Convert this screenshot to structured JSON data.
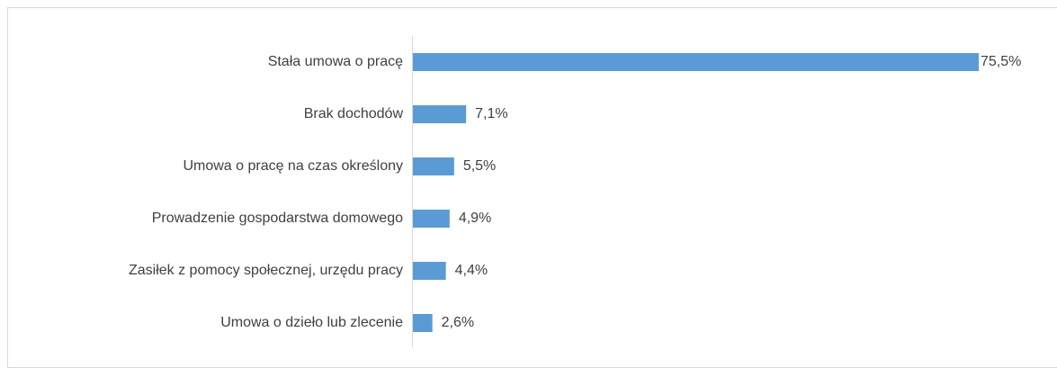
{
  "chart_data": {
    "type": "hbar",
    "categories": [
      "Stała umowa o pracę",
      "Brak dochodów",
      "Umowa o pracę na czas określony",
      "Prowadzenie gospodarstwa domowego",
      "Zasiłek z pomocy społecznej, urzędu pracy",
      "Umowa o dzieło lub zlecenie"
    ],
    "values": [
      75.5,
      7.1,
      5.5,
      4.9,
      4.4,
      2.6
    ],
    "value_labels": [
      "75,5%",
      "7,1%",
      "5,5%",
      "4,9%",
      "4,4%",
      "2,6%"
    ],
    "color": "#5b9bd5"
  }
}
